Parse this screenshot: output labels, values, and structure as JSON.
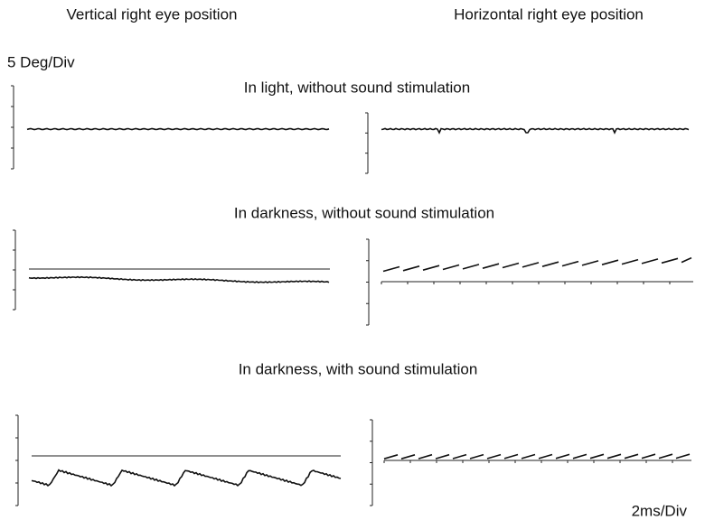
{
  "columns": {
    "left": "Vertical right eye position",
    "right": "Horizontal right eye position"
  },
  "scale": {
    "vertical": "5 Deg/Div",
    "horizontal": "2ms/Div"
  },
  "rows": [
    {
      "title": "In light, without sound stimulation"
    },
    {
      "title": "In darkness, without sound stimulation"
    },
    {
      "title": "In darkness, with sound stimulation"
    }
  ]
}
